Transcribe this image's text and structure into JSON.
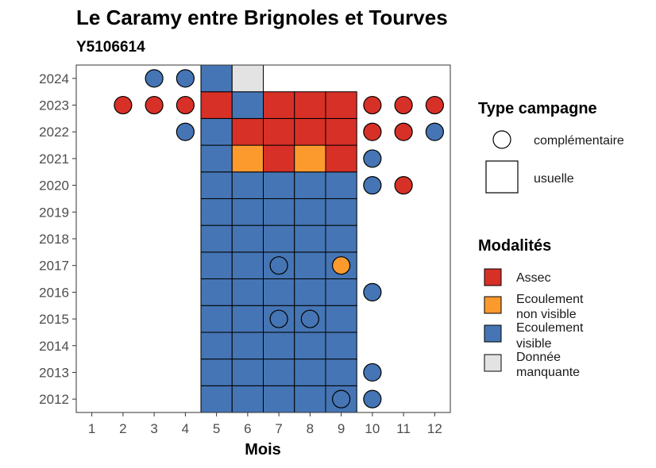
{
  "chart_data": {
    "type": "heatmap",
    "title": "Le Caramy entre Brignoles et Tourves",
    "subtitle": "Y5106614",
    "xlabel": "Mois",
    "ylabel": "",
    "x_ticks": [
      1,
      2,
      3,
      4,
      5,
      6,
      7,
      8,
      9,
      10,
      11,
      12
    ],
    "y_ticks": [
      2012,
      2013,
      2014,
      2015,
      2016,
      2017,
      2018,
      2019,
      2020,
      2021,
      2022,
      2023,
      2024
    ],
    "xlim": [
      0.5,
      12.5
    ],
    "ylim": [
      2011.5,
      2024.5
    ],
    "colors": {
      "Assec": "#d73027",
      "Ecoulement non visible": "#fd9a2e",
      "Ecoulement visible": "#4575b4",
      "Donnée manquante": "#e3e3e3"
    },
    "legend_campagne": {
      "title": "Type campagne",
      "items": [
        {
          "label": "complémentaire",
          "shape": "circle"
        },
        {
          "label": "usuelle",
          "shape": "square"
        }
      ]
    },
    "legend_modalites": {
      "title": "Modalités",
      "items": [
        {
          "key": "Assec",
          "lines": [
            "Assec"
          ]
        },
        {
          "key": "Ecoulement non visible",
          "lines": [
            "Ecoulement",
            "non visible"
          ]
        },
        {
          "key": "Ecoulement visible",
          "lines": [
            "Ecoulement",
            "visible"
          ]
        },
        {
          "key": "Donnée manquante",
          "lines": [
            "Donnée",
            "manquante"
          ]
        }
      ]
    },
    "usuelle": [
      {
        "year": 2012,
        "months": {
          "5": "Ecoulement visible",
          "6": "Ecoulement visible",
          "7": "Ecoulement visible",
          "8": "Ecoulement visible",
          "9": "Ecoulement visible"
        }
      },
      {
        "year": 2013,
        "months": {
          "5": "Ecoulement visible",
          "6": "Ecoulement visible",
          "7": "Ecoulement visible",
          "8": "Ecoulement visible",
          "9": "Ecoulement visible"
        }
      },
      {
        "year": 2014,
        "months": {
          "5": "Ecoulement visible",
          "6": "Ecoulement visible",
          "7": "Ecoulement visible",
          "8": "Ecoulement visible",
          "9": "Ecoulement visible"
        }
      },
      {
        "year": 2015,
        "months": {
          "5": "Ecoulement visible",
          "6": "Ecoulement visible",
          "7": "Ecoulement visible",
          "8": "Ecoulement visible",
          "9": "Ecoulement visible"
        }
      },
      {
        "year": 2016,
        "months": {
          "5": "Ecoulement visible",
          "6": "Ecoulement visible",
          "7": "Ecoulement visible",
          "8": "Ecoulement visible",
          "9": "Ecoulement visible"
        }
      },
      {
        "year": 2017,
        "months": {
          "5": "Ecoulement visible",
          "6": "Ecoulement visible",
          "7": "Ecoulement visible",
          "8": "Ecoulement visible",
          "9": "Ecoulement visible"
        }
      },
      {
        "year": 2018,
        "months": {
          "5": "Ecoulement visible",
          "6": "Ecoulement visible",
          "7": "Ecoulement visible",
          "8": "Ecoulement visible",
          "9": "Ecoulement visible"
        }
      },
      {
        "year": 2019,
        "months": {
          "5": "Ecoulement visible",
          "6": "Ecoulement visible",
          "7": "Ecoulement visible",
          "8": "Ecoulement visible",
          "9": "Ecoulement visible"
        }
      },
      {
        "year": 2020,
        "months": {
          "5": "Ecoulement visible",
          "6": "Ecoulement visible",
          "7": "Ecoulement visible",
          "8": "Ecoulement visible",
          "9": "Ecoulement visible"
        }
      },
      {
        "year": 2021,
        "months": {
          "5": "Ecoulement visible",
          "6": "Ecoulement non visible",
          "7": "Assec",
          "8": "Ecoulement non visible",
          "9": "Assec"
        }
      },
      {
        "year": 2022,
        "months": {
          "5": "Ecoulement visible",
          "6": "Assec",
          "7": "Assec",
          "8": "Assec",
          "9": "Assec"
        }
      },
      {
        "year": 2023,
        "months": {
          "5": "Assec",
          "6": "Ecoulement visible",
          "7": "Assec",
          "8": "Assec",
          "9": "Assec"
        }
      },
      {
        "year": 2024,
        "months": {
          "5": "Ecoulement visible",
          "6": "Donnée manquante"
        }
      }
    ],
    "complementaire": [
      {
        "year": 2012,
        "month": 9,
        "value": "Ecoulement visible"
      },
      {
        "year": 2012,
        "month": 10,
        "value": "Ecoulement visible"
      },
      {
        "year": 2013,
        "month": 10,
        "value": "Ecoulement visible"
      },
      {
        "year": 2015,
        "month": 7,
        "value": "Ecoulement visible"
      },
      {
        "year": 2015,
        "month": 8,
        "value": "Ecoulement visible"
      },
      {
        "year": 2016,
        "month": 10,
        "value": "Ecoulement visible"
      },
      {
        "year": 2017,
        "month": 7,
        "value": "Ecoulement visible"
      },
      {
        "year": 2017,
        "month": 9,
        "value": "Ecoulement non visible"
      },
      {
        "year": 2020,
        "month": 10,
        "value": "Ecoulement visible"
      },
      {
        "year": 2020,
        "month": 11,
        "value": "Assec"
      },
      {
        "year": 2021,
        "month": 10,
        "value": "Ecoulement visible"
      },
      {
        "year": 2022,
        "month": 4,
        "value": "Ecoulement visible"
      },
      {
        "year": 2022,
        "month": 10,
        "value": "Assec"
      },
      {
        "year": 2022,
        "month": 11,
        "value": "Assec"
      },
      {
        "year": 2022,
        "month": 12,
        "value": "Ecoulement visible"
      },
      {
        "year": 2023,
        "month": 2,
        "value": "Assec"
      },
      {
        "year": 2023,
        "month": 3,
        "value": "Assec"
      },
      {
        "year": 2023,
        "month": 4,
        "value": "Assec"
      },
      {
        "year": 2023,
        "month": 10,
        "value": "Assec"
      },
      {
        "year": 2023,
        "month": 11,
        "value": "Assec"
      },
      {
        "year": 2023,
        "month": 12,
        "value": "Assec"
      },
      {
        "year": 2024,
        "month": 3,
        "value": "Ecoulement visible"
      },
      {
        "year": 2024,
        "month": 4,
        "value": "Ecoulement visible"
      }
    ]
  }
}
